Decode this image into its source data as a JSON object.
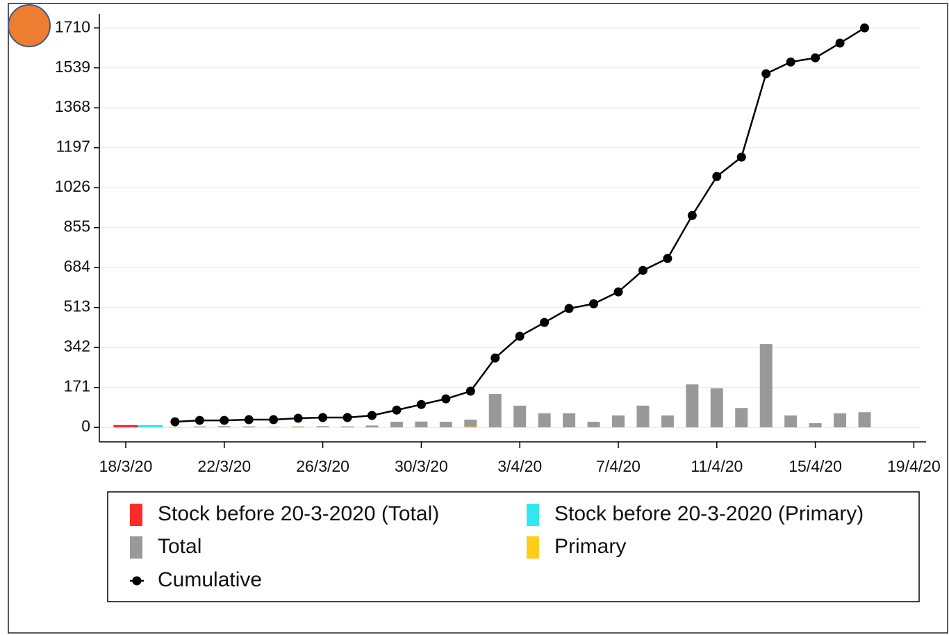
{
  "chart_data": {
    "type": "bar",
    "categories": [
      "18/3/20",
      null,
      null,
      null,
      "22/3/20",
      null,
      null,
      null,
      "26/3/20",
      null,
      null,
      null,
      "30/3/20",
      null,
      null,
      null,
      "3/4/20",
      null,
      null,
      null,
      "7/4/20",
      null,
      null,
      null,
      "11/4/20",
      null,
      null,
      null,
      "15/4/20",
      null,
      null,
      null,
      "19/4/20"
    ],
    "ylim": [
      -62,
      1770
    ],
    "yticks": [
      0,
      171,
      342,
      513,
      684,
      855,
      1026,
      1197,
      1368,
      1539,
      1710
    ],
    "grid": true,
    "series": [
      {
        "name": "Stock before 20-3-2020 (Total)",
        "color": "#ff2a2a",
        "values": [
          10,
          null,
          null,
          null,
          null,
          null,
          null,
          null,
          null,
          null,
          null,
          null,
          null,
          null,
          null,
          null,
          null,
          null,
          null,
          null,
          null,
          null,
          null,
          null,
          null,
          null,
          null,
          null,
          null,
          null,
          null,
          null,
          null
        ]
      },
      {
        "name": "Stock before 20-3-2020 (Primary)",
        "color": "#33e6f0",
        "values": [
          null,
          10,
          null,
          null,
          null,
          null,
          null,
          null,
          null,
          null,
          null,
          null,
          null,
          null,
          null,
          null,
          null,
          null,
          null,
          null,
          null,
          null,
          null,
          null,
          null,
          null,
          null,
          null,
          null,
          null,
          null,
          null,
          null
        ]
      },
      {
        "name": "Total",
        "color": "#999999",
        "values": [
          null,
          null,
          2,
          4,
          5,
          4,
          2,
          4,
          5,
          4,
          8,
          24,
          25,
          24,
          33,
          143,
          93,
          60,
          60,
          24,
          51,
          93,
          51,
          184,
          167,
          83,
          357,
          51,
          18,
          60,
          65,
          null,
          null
        ]
      },
      {
        "name": "Primary",
        "color": "#ffcc1a",
        "values": [
          null,
          null,
          1,
          null,
          null,
          null,
          null,
          2,
          null,
          null,
          null,
          null,
          null,
          null,
          3,
          null,
          null,
          null,
          null,
          null,
          null,
          null,
          null,
          null,
          null,
          null,
          null,
          null,
          null,
          null,
          null,
          null,
          null
        ]
      },
      {
        "name": "Cumulative",
        "type": "line",
        "color": "#000000",
        "values": [
          null,
          null,
          24,
          30,
          30,
          33,
          33,
          39,
          42,
          42,
          51,
          74,
          98,
          122,
          155,
          297,
          390,
          449,
          509,
          529,
          580,
          672,
          723,
          907,
          1074,
          1157,
          1514,
          1564,
          1582,
          1645,
          1710,
          null,
          null
        ]
      }
    ]
  }
}
